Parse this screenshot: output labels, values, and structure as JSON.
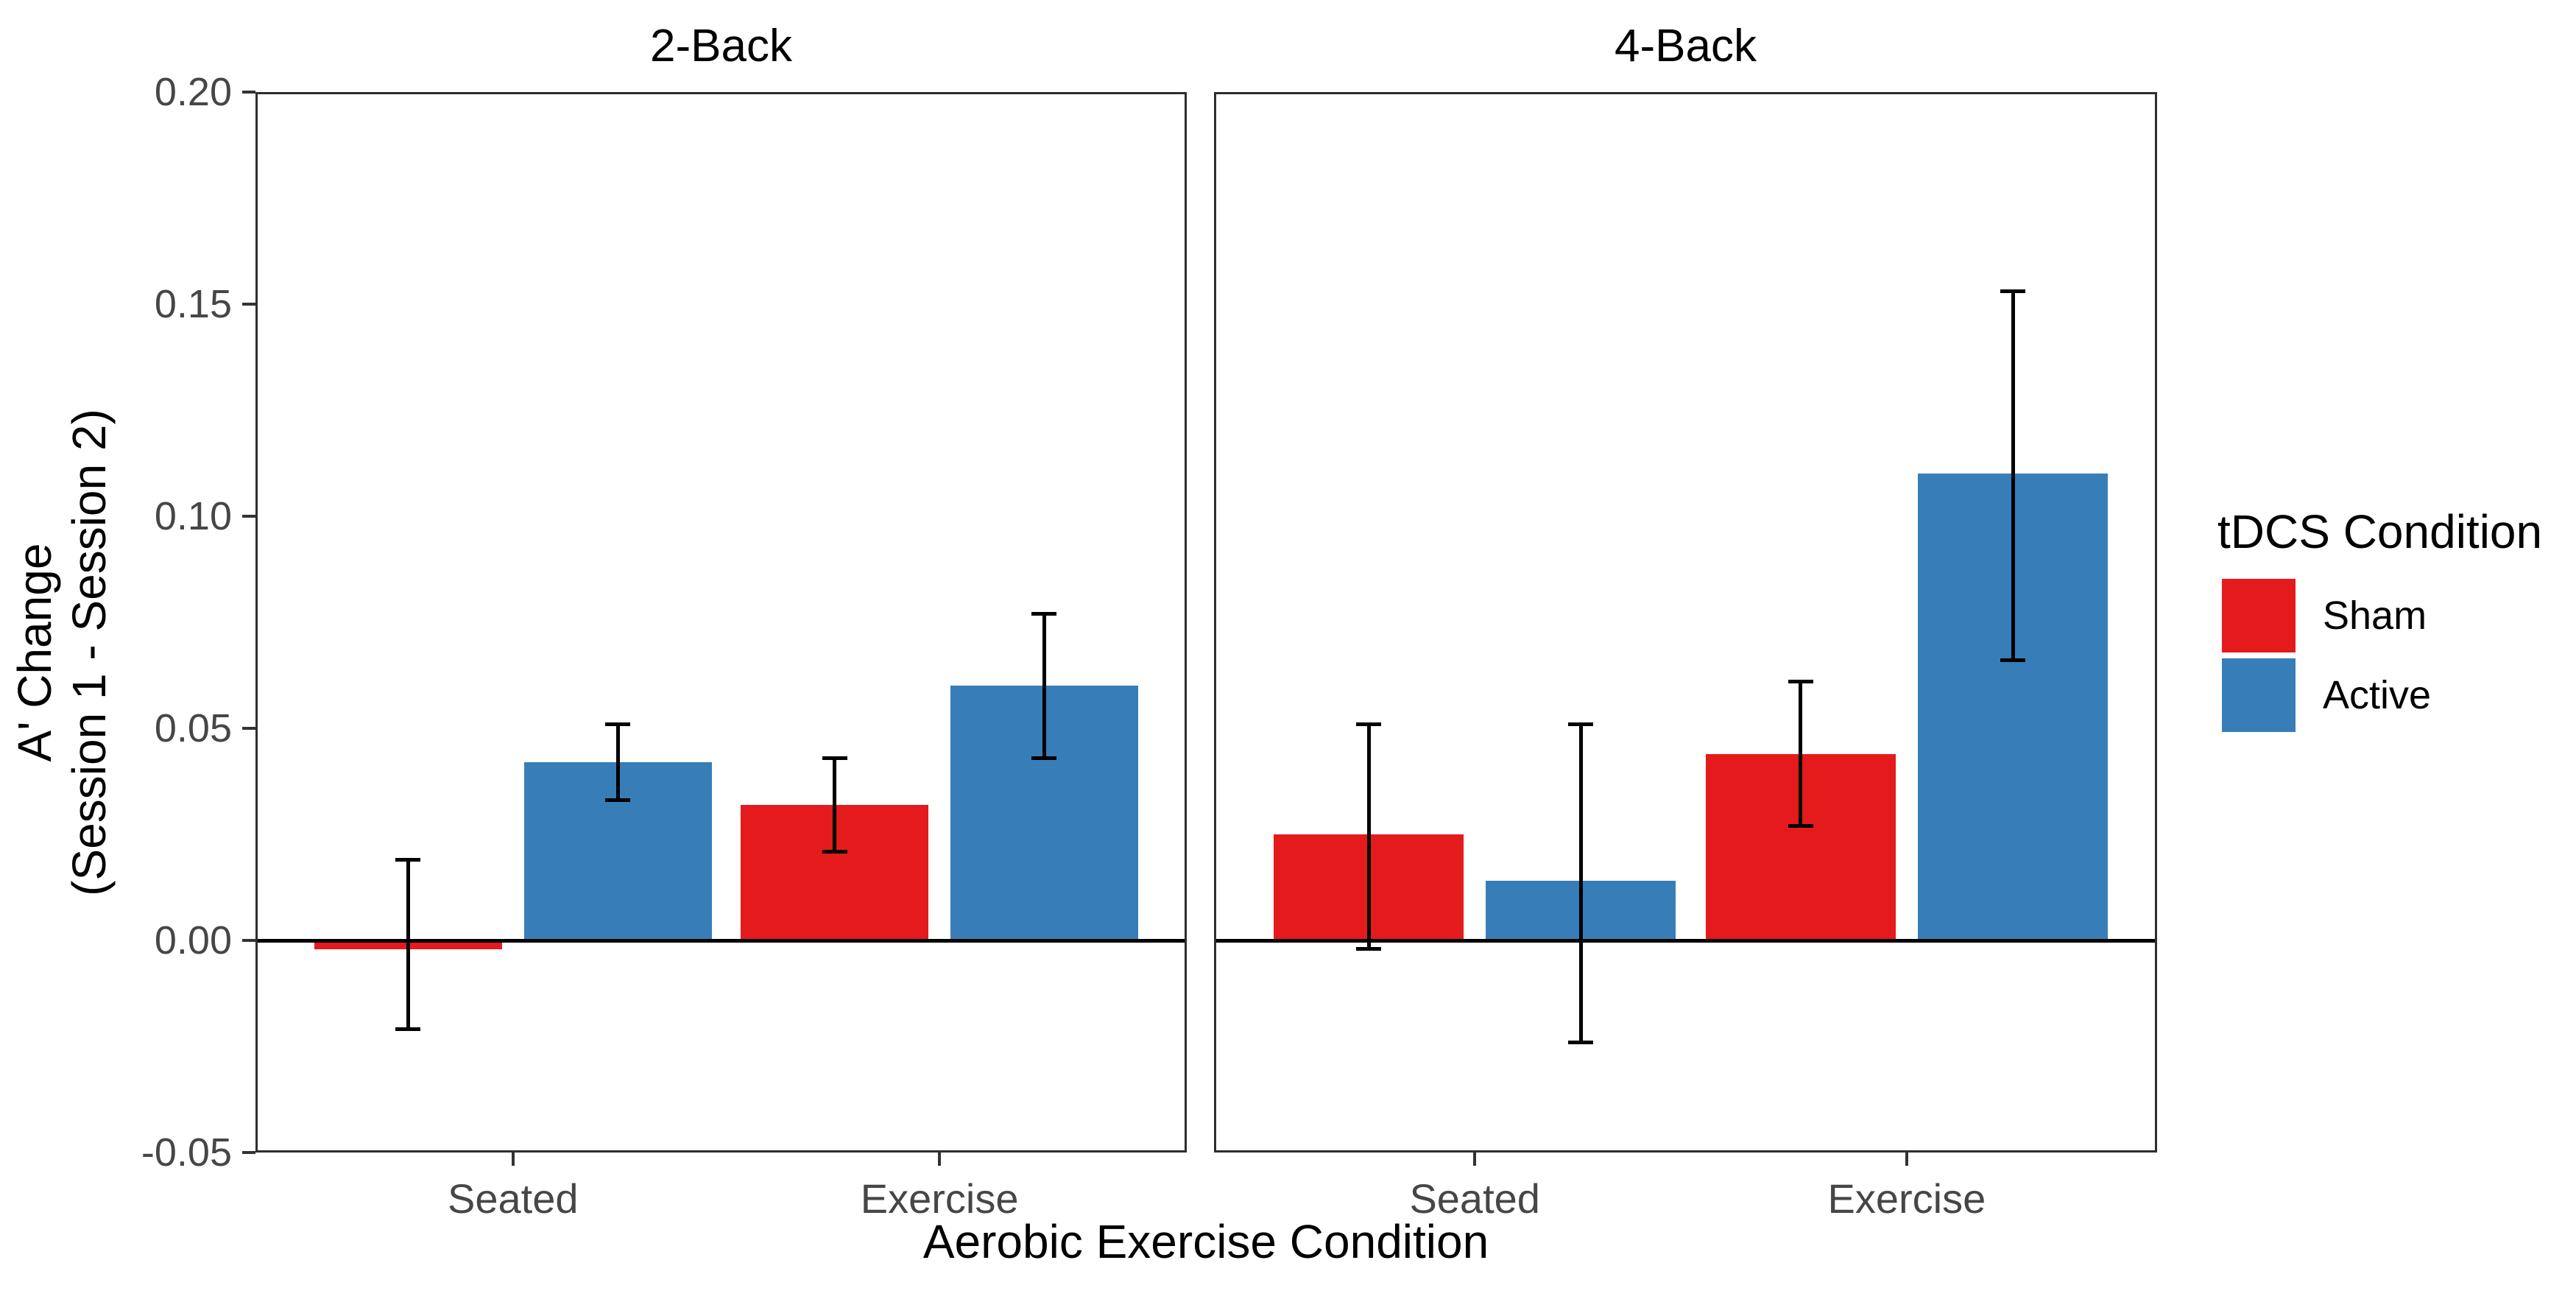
{
  "chart_data": {
    "type": "bar",
    "title": "",
    "xlabel": "Aerobic Exercise Condition",
    "ylabel": [
      "A' Change",
      "(Session 1 - Session 2)"
    ],
    "ylim": [
      -0.05,
      0.2
    ],
    "y_ticks": [
      0.2,
      0.15,
      0.1,
      0.05,
      0.0,
      -0.05
    ],
    "y_tick_labels": [
      "0.20",
      "0.15",
      "0.10",
      "0.05",
      "0.00",
      "-0.05"
    ],
    "x_categories": [
      "Seated",
      "Exercise"
    ],
    "grid": "off",
    "error_bars": "95% CI whiskers with caps",
    "legend": {
      "title": "tDCS Condition",
      "position": "right",
      "entries": [
        {
          "label": "Sham",
          "color": "#E41A1C"
        },
        {
          "label": "Active",
          "color": "#377EB8"
        }
      ]
    },
    "facets": [
      {
        "label": "2-Back",
        "groups": [
          {
            "category": "Seated",
            "bars": [
              {
                "series": "Sham",
                "value": -0.002,
                "ci_low": -0.021,
                "ci_high": 0.019
              },
              {
                "series": "Active",
                "value": 0.042,
                "ci_low": 0.033,
                "ci_high": 0.051
              }
            ]
          },
          {
            "category": "Exercise",
            "bars": [
              {
                "series": "Sham",
                "value": 0.032,
                "ci_low": 0.021,
                "ci_high": 0.043
              },
              {
                "series": "Active",
                "value": 0.06,
                "ci_low": 0.043,
                "ci_high": 0.077
              }
            ]
          }
        ]
      },
      {
        "label": "4-Back",
        "groups": [
          {
            "category": "Seated",
            "bars": [
              {
                "series": "Sham",
                "value": 0.025,
                "ci_low": -0.002,
                "ci_high": 0.051
              },
              {
                "series": "Active",
                "value": 0.014,
                "ci_low": -0.024,
                "ci_high": 0.051
              }
            ]
          },
          {
            "category": "Exercise",
            "bars": [
              {
                "series": "Sham",
                "value": 0.044,
                "ci_low": 0.027,
                "ci_high": 0.061
              },
              {
                "series": "Active",
                "value": 0.11,
                "ci_low": 0.066,
                "ci_high": 0.153
              }
            ]
          }
        ]
      }
    ]
  }
}
